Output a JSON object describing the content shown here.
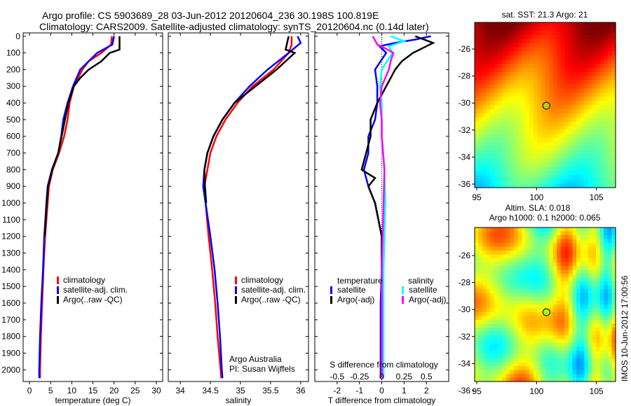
{
  "title": {
    "line1": "Argo profile: CS 5903689_28 03-Jun-2012 20120604_236 30.198S 100.819E",
    "line2": "Climatology: CARS2009. Satellite-adjusted climatology: synTS_20120604.nc (0.14d later)"
  },
  "colors": {
    "climatology": "#ff0000",
    "satellite": "#0000ff",
    "argo": "#000000",
    "sal_sat": "#00ffff",
    "sal_argo": "#ff00ff"
  },
  "chart_data": [
    {
      "type": "line",
      "xlabel": "temperature (deg C)",
      "ylabel": "depth",
      "xlim": [
        -1.5,
        31.5
      ],
      "ylim": [
        2070,
        -20
      ],
      "xticks": [
        "0",
        "5",
        "10",
        "15",
        "20",
        "25",
        "30"
      ],
      "xtickvals": [
        0,
        5,
        10,
        15,
        20,
        25,
        30
      ],
      "yticks": [
        "0",
        "100",
        "200",
        "300",
        "400",
        "500",
        "600",
        "700",
        "800",
        "900",
        "1000",
        "1100",
        "1200",
        "1300",
        "1400",
        "1500",
        "1600",
        "1700",
        "1800",
        "1900",
        "2000"
      ],
      "legend": [
        "climatology",
        "satellite-adj. clim.",
        "Argo(..raw -QC)"
      ],
      "series": [
        {
          "name": "climatology",
          "depth": [
            0,
            50,
            100,
            150,
            200,
            300,
            400,
            500,
            600,
            700,
            800,
            900,
            1000,
            1200,
            1400,
            1600,
            1800,
            2000,
            2050
          ],
          "values": [
            19.5,
            19.3,
            17,
            14,
            12.5,
            10.5,
            9.5,
            9,
            8.2,
            7,
            5.5,
            4.6,
            4.3,
            3.7,
            3.3,
            3,
            2.7,
            2.5,
            2.5
          ]
        },
        {
          "name": "satellite-adj. clim.",
          "depth": [
            0,
            50,
            100,
            150,
            200,
            300,
            400,
            500,
            600,
            700,
            800,
            900,
            1000,
            1200,
            1400,
            1600,
            1800,
            2000,
            2050
          ],
          "values": [
            20,
            19.6,
            16,
            14,
            12,
            10.3,
            9,
            8,
            7.5,
            6.8,
            5.3,
            4.3,
            4,
            3.5,
            3.2,
            2.8,
            2.5,
            2.3,
            2.3
          ]
        },
        {
          "name": "Argo(..raw -QC)",
          "depth": [
            0,
            80,
            100,
            150,
            200,
            250,
            300,
            400,
            500,
            600,
            700,
            800,
            900,
            1000,
            1200
          ],
          "values": [
            21.3,
            21.3,
            19,
            17,
            14,
            12,
            10.5,
            9.2,
            8.4,
            7.6,
            6.8,
            5.4,
            4.4,
            4.1,
            3.6
          ]
        }
      ]
    },
    {
      "type": "line",
      "xlabel": "salinity",
      "ylabel": "depth",
      "xlim": [
        33.8,
        36.13
      ],
      "ylim": [
        2070,
        -20
      ],
      "xticks": [
        "34",
        "34.5",
        "35",
        "35.5",
        "36"
      ],
      "xtickvals": [
        34,
        34.5,
        35,
        35.5,
        36
      ],
      "legend": [
        "climatology",
        "satellite-adj. clim.",
        "Argo(..raw -QC)"
      ],
      "annotation": [
        "Argo Australia",
        "PI: Susan Wijffels"
      ],
      "series": [
        {
          "name": "climatology",
          "depth": [
            0,
            50,
            100,
            200,
            300,
            400,
            500,
            600,
            700,
            800,
            900,
            1000,
            1200,
            1400,
            1600,
            1800,
            2000,
            2050
          ],
          "values": [
            35.85,
            35.85,
            35.8,
            35.55,
            35.2,
            34.95,
            34.75,
            34.6,
            34.5,
            34.45,
            34.4,
            34.42,
            34.47,
            34.53,
            34.58,
            34.62,
            34.67,
            34.68
          ]
        },
        {
          "name": "satellite-adj. clim.",
          "depth": [
            0,
            40,
            100,
            200,
            300,
            400,
            500,
            600,
            700,
            800,
            900,
            1000,
            1200,
            1400,
            1600,
            1800,
            2000,
            2050
          ],
          "values": [
            35.95,
            36.0,
            35.8,
            35.45,
            35.15,
            34.9,
            34.7,
            34.55,
            34.45,
            34.4,
            34.38,
            34.42,
            34.5,
            34.57,
            34.62,
            34.66,
            34.69,
            34.7
          ]
        },
        {
          "name": "Argo(..raw -QC)",
          "depth": [
            0,
            80,
            100,
            200,
            300,
            400,
            500,
            600,
            700,
            800,
            900,
            1000
          ],
          "values": [
            35.8,
            35.75,
            35.9,
            35.6,
            35.25,
            34.9,
            34.7,
            34.55,
            34.45,
            34.4,
            34.41,
            34.43
          ]
        }
      ]
    },
    {
      "type": "line",
      "xlabel": "T difference from climatology",
      "x2label": "S difference from climatology",
      "xlim": [
        -3,
        3
      ],
      "ylim": [
        2070,
        -20
      ],
      "xticks": [
        "-2",
        "-1",
        "0",
        "1",
        "2"
      ],
      "xtickvals": [
        -2,
        -1,
        0,
        1,
        2
      ],
      "x2ticks": [
        "-0.5",
        "-0.25",
        "0",
        "0.25",
        "0.5"
      ],
      "x2tickvals": [
        -0.5,
        -0.25,
        0,
        0.25,
        0.5
      ],
      "legend_temperature": "temperature",
      "legend_salinity": "salinity",
      "legend_items": [
        "satellite",
        "Argo(-adj)",
        "satellite",
        "Argo(-adj)"
      ],
      "series": [
        {
          "name": "temperature satellite",
          "depth": [
            0,
            20,
            40,
            60,
            100,
            200,
            300,
            400,
            500,
            600,
            700,
            800,
            900,
            1000,
            1200,
            1400,
            1600,
            2050
          ],
          "values": [
            2.2,
            1.5,
            0.6,
            -0.1,
            0.2,
            -0.3,
            -0.2,
            -0.2,
            -0.3,
            -0.6,
            -0.6,
            -0.8,
            -0.6,
            -0.3,
            0,
            0,
            -0.05,
            -0.05
          ]
        },
        {
          "name": "temperature Argo(-adj)",
          "depth": [
            0,
            40,
            60,
            100,
            150,
            200,
            300,
            400,
            500,
            600,
            700,
            800,
            850,
            900,
            1000,
            1200,
            1400,
            2050
          ],
          "values": [
            1.5,
            2.3,
            2.0,
            1.4,
            0.9,
            0.6,
            0.2,
            -0.2,
            -0.5,
            -0.5,
            -0.7,
            -0.9,
            -0.3,
            -0.6,
            -0.3,
            0,
            0,
            0
          ]
        },
        {
          "name": "salinity satellite",
          "depth": [
            0,
            30,
            60,
            100,
            200,
            300,
            400,
            600,
            800,
            1000,
            1400,
            2050
          ],
          "values": [
            0.1,
            0.25,
            0.08,
            0.12,
            0.0,
            -0.02,
            0.0,
            0.0,
            0.03,
            0.04,
            0.02,
            0.02
          ]
        },
        {
          "name": "salinity Argo(-adj)",
          "depth": [
            0,
            50,
            70,
            100,
            150,
            200,
            300,
            400,
            500,
            600,
            800,
            1000,
            1400,
            2050
          ],
          "values": [
            -0.1,
            -0.05,
            0.03,
            0.13,
            0.1,
            0.08,
            0.0,
            -0.02,
            0.0,
            0.0,
            0.03,
            0.02,
            0.0,
            0.0
          ]
        }
      ]
    }
  ],
  "maps": [
    {
      "title": "sat. SST: 21.3 Argo: 21",
      "xticks": [
        "95",
        "100",
        "105"
      ],
      "yticks": [
        "-26",
        "-28",
        "-30",
        "-32",
        "-34",
        "-36"
      ],
      "marker": {
        "lon": 100.819,
        "lat": -30.198
      }
    },
    {
      "title1": "Altim. SLA: 0.018",
      "title2": "Argo h1000: 0.1 h2000: 0.065",
      "xticks": [
        "95",
        "100",
        "105"
      ],
      "yticks": [
        "-26",
        "-28",
        "-30",
        "-32",
        "-34",
        "-36"
      ],
      "marker": {
        "lon": 100.819,
        "lat": -30.198
      }
    }
  ],
  "footer": "IMOS 10-Jun-2012 17:00:56"
}
